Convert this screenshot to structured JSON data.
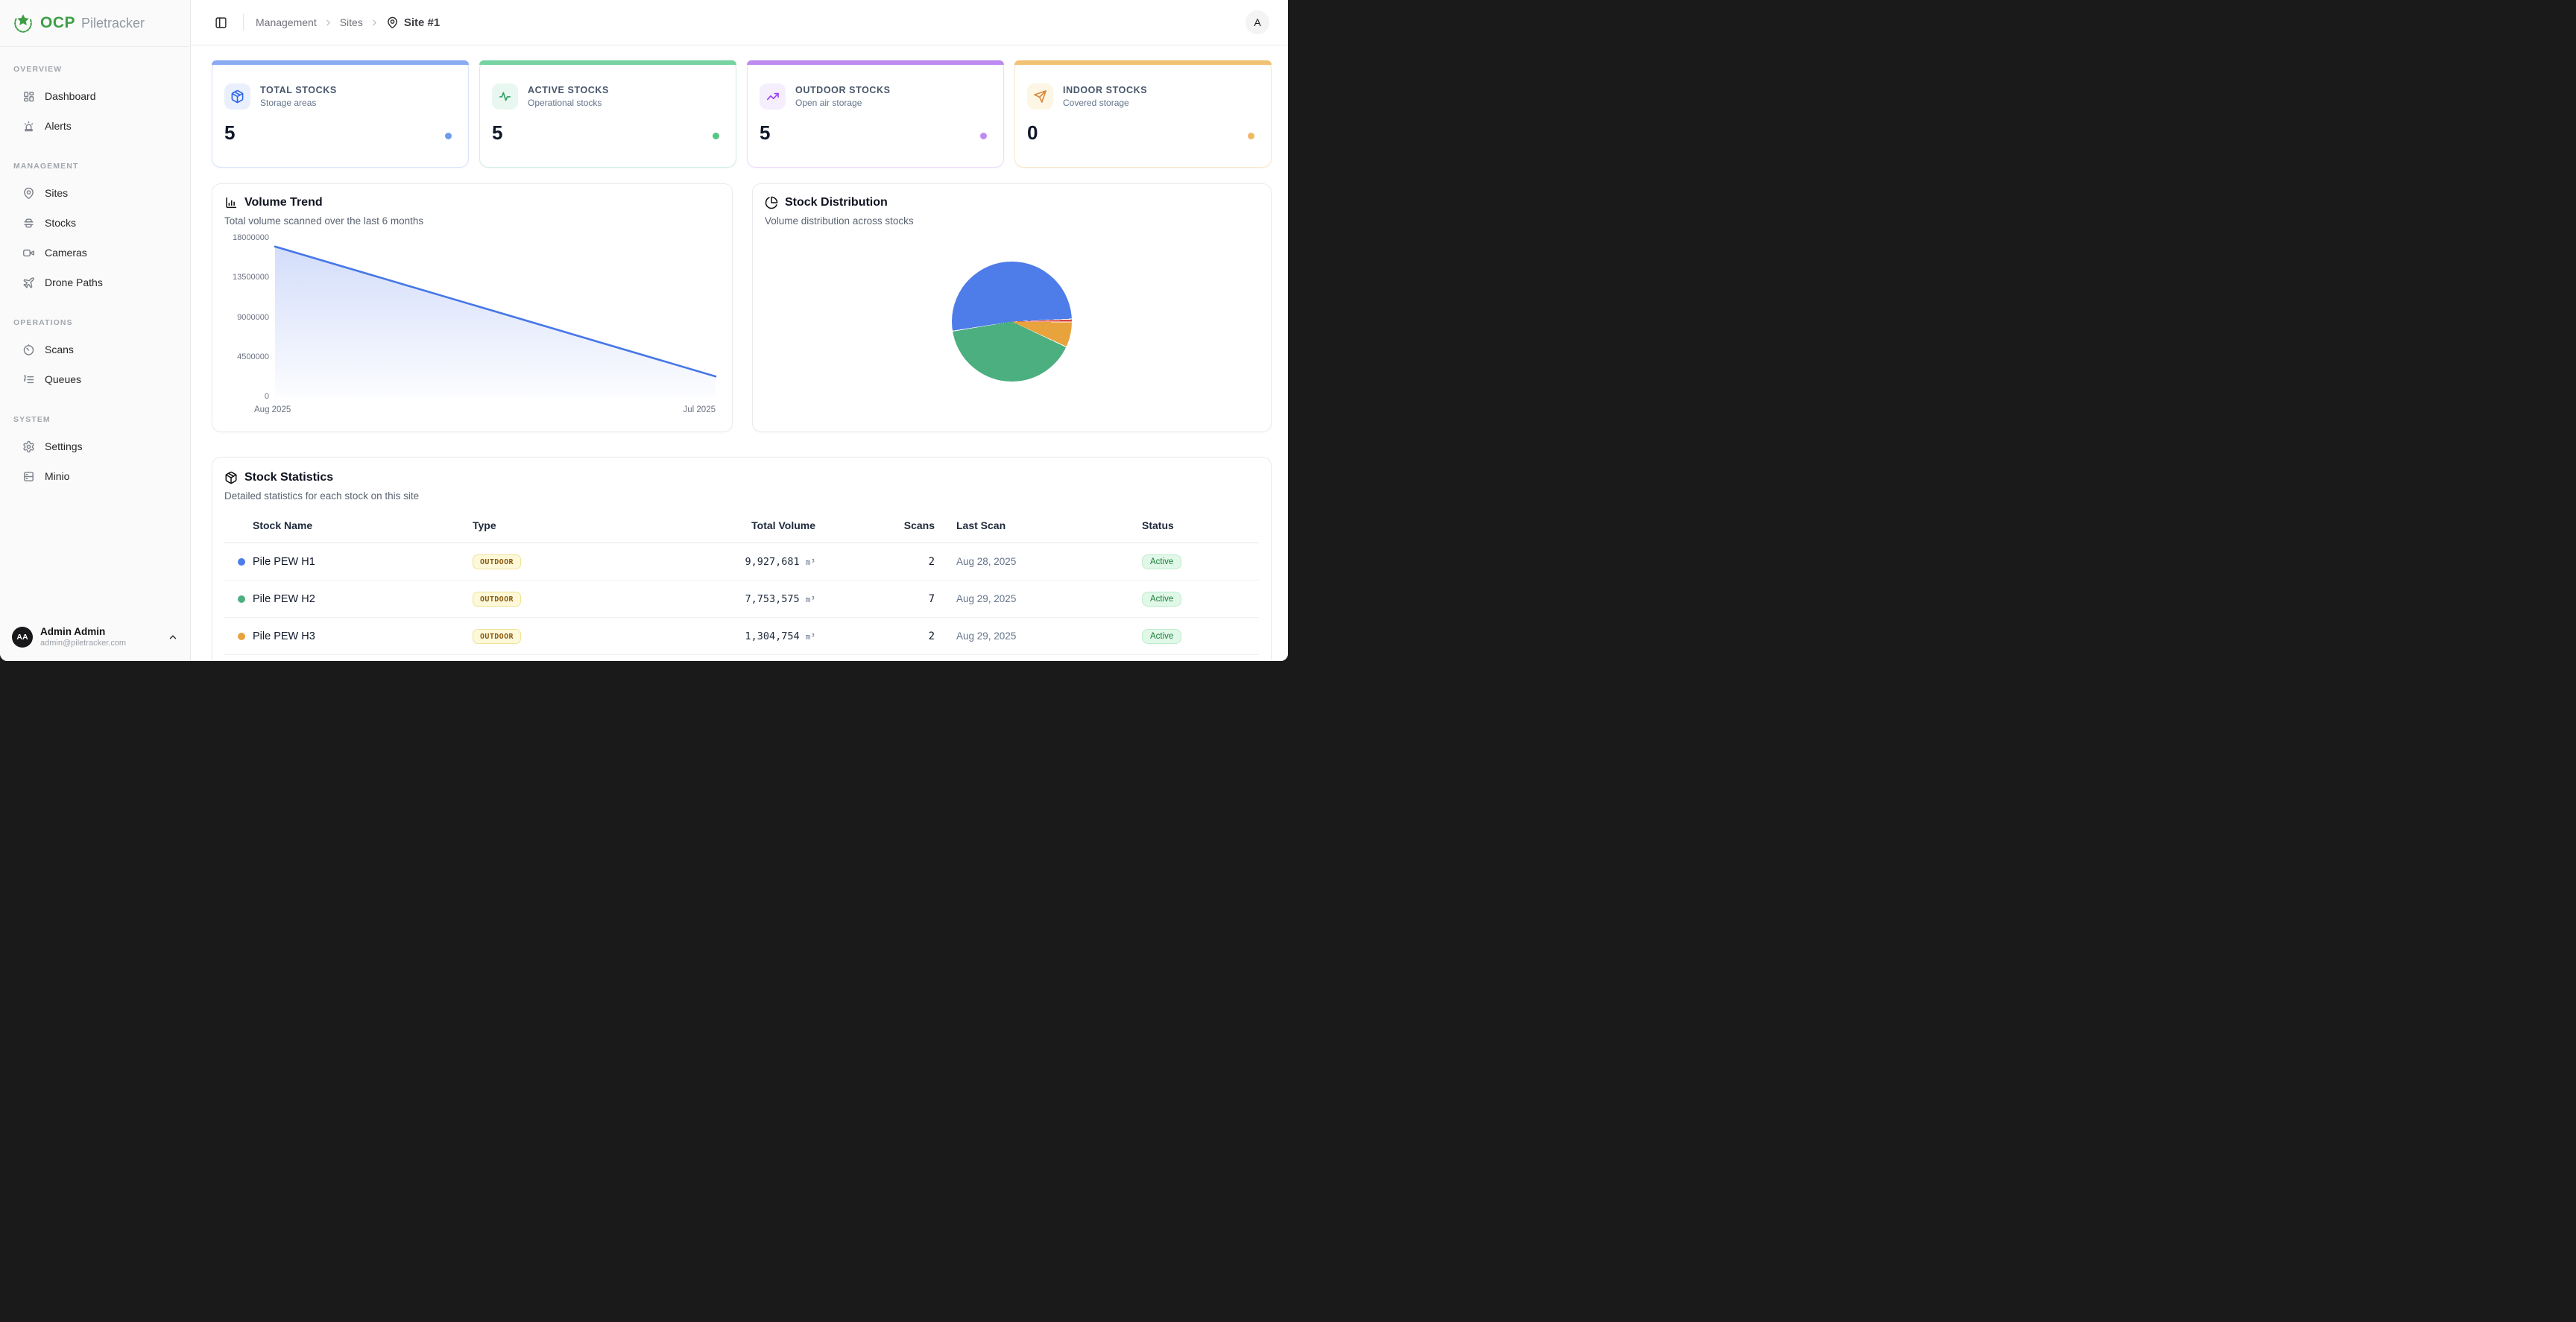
{
  "brand": {
    "ocp": "OCP",
    "product": "Piletracker"
  },
  "header": {
    "breadcrumb": [
      "Management",
      "Sites"
    ],
    "breadcrumb_current": "Site #1",
    "avatar_initial": "A"
  },
  "sidebar": {
    "sections": [
      {
        "label": "OVERVIEW",
        "items": [
          {
            "icon": "dashboard",
            "label": "Dashboard"
          },
          {
            "icon": "siren",
            "label": "Alerts"
          }
        ]
      },
      {
        "label": "MANAGEMENT",
        "items": [
          {
            "icon": "map-pin",
            "label": "Sites"
          },
          {
            "icon": "stack",
            "label": "Stocks"
          },
          {
            "icon": "video-camera",
            "label": "Cameras"
          },
          {
            "icon": "plane",
            "label": "Drone Paths"
          }
        ]
      },
      {
        "label": "OPERATIONS",
        "items": [
          {
            "icon": "timer",
            "label": "Scans"
          },
          {
            "icon": "list-ordered",
            "label": "Queues"
          }
        ]
      },
      {
        "label": "SYSTEM",
        "items": [
          {
            "icon": "gear",
            "label": "Settings"
          },
          {
            "icon": "server",
            "label": "Minio"
          }
        ]
      }
    ],
    "user": {
      "initials": "AA",
      "name": "Admin Admin",
      "email": "admin@piletracker.com"
    }
  },
  "stats": {
    "cards": [
      {
        "icon": "package",
        "title": "TOTAL STOCKS",
        "subtitle": "Storage areas",
        "value": "5",
        "accent": "#2964ea",
        "strip": "#8aabf2",
        "tint": "#e9effc",
        "border": "#d9e4fa",
        "dot": "#6d9ceb"
      },
      {
        "icon": "activity",
        "title": "ACTIVE STOCKS",
        "subtitle": "Operational stocks",
        "value": "5",
        "accent": "#2f9e63",
        "strip": "#74d3a1",
        "tint": "#e8f7ef",
        "border": "#d2f0e0",
        "dot": "#57c389"
      },
      {
        "icon": "trending-up",
        "title": "OUTDOOR STOCKS",
        "subtitle": "Open air storage",
        "value": "5",
        "accent": "#9b3df0",
        "strip": "#bd8bf0",
        "tint": "#f5eefd",
        "border": "#ecdcfa",
        "dot": "#c18af2"
      },
      {
        "icon": "send",
        "title": "INDOOR STOCKS",
        "subtitle": "Covered storage",
        "value": "0",
        "accent": "#dd8434",
        "strip": "#f2c273",
        "tint": "#fdf6e4",
        "border": "#f8e8c8",
        "dot": "#edba62"
      }
    ]
  },
  "volume_trend": {
    "icon": "bar-chart",
    "title": "Volume Trend",
    "subtitle": "Total volume scanned over the last 6 months"
  },
  "stock_distribution": {
    "icon": "pie-chart",
    "title": "Stock Distribution",
    "subtitle": "Volume distribution across stocks"
  },
  "chart_data": [
    {
      "type": "area",
      "title": "Volume Trend",
      "x": [
        "Aug 2025",
        "Jul 2025"
      ],
      "series": [
        {
          "name": "Total volume scanned",
          "values": [
            17000000,
            2300000
          ]
        }
      ],
      "ylim": [
        0,
        18000000
      ],
      "yticks": [
        18000000,
        13500000,
        9000000,
        4500000,
        0
      ],
      "xlabel": "",
      "ylabel": "",
      "grid": false,
      "legend": "none",
      "line_color": "#4677e8",
      "fill_color": "#567ded"
    },
    {
      "type": "pie",
      "title": "Stock Distribution",
      "slices": [
        {
          "label": "Pile PEW H1",
          "value": 9927681,
          "color": "#4e7ce8"
        },
        {
          "label": "Pile PEW H2",
          "value": 7753575,
          "color": "#4caf80"
        },
        {
          "label": "Pile PEW H3",
          "value": 1304754,
          "color": "#e8a33d"
        },
        {
          "label": "",
          "value": 150000,
          "color": "#d9453d",
          "estimated": true
        }
      ],
      "start_angle_deg": 88,
      "draw_order_clockwise": [
        3,
        2,
        1,
        0
      ],
      "gap_deg": 0.8,
      "legend": "none"
    }
  ],
  "table": {
    "icon": "package",
    "title": "Stock Statistics",
    "subtitle": "Detailed statistics for each stock on this site",
    "columns": [
      "Stock Name",
      "Type",
      "Total Volume",
      "Scans",
      "Last Scan",
      "Status"
    ],
    "rows": [
      {
        "dot": "#4e7ce8",
        "name": "Pile PEW H1",
        "type": "OUTDOOR",
        "volume": "9,927,681",
        "unit": "m³",
        "scans": "2",
        "last_scan": "Aug 28, 2025",
        "status": "Active"
      },
      {
        "dot": "#4caf80",
        "name": "Pile PEW H2",
        "type": "OUTDOOR",
        "volume": "7,753,575",
        "unit": "m³",
        "scans": "7",
        "last_scan": "Aug 29, 2025",
        "status": "Active"
      },
      {
        "dot": "#e8a33d",
        "name": "Pile PEW H3",
        "type": "OUTDOOR",
        "volume": "1,304,754",
        "unit": "m³",
        "scans": "2",
        "last_scan": "Aug 29, 2025",
        "status": "Active"
      }
    ]
  }
}
